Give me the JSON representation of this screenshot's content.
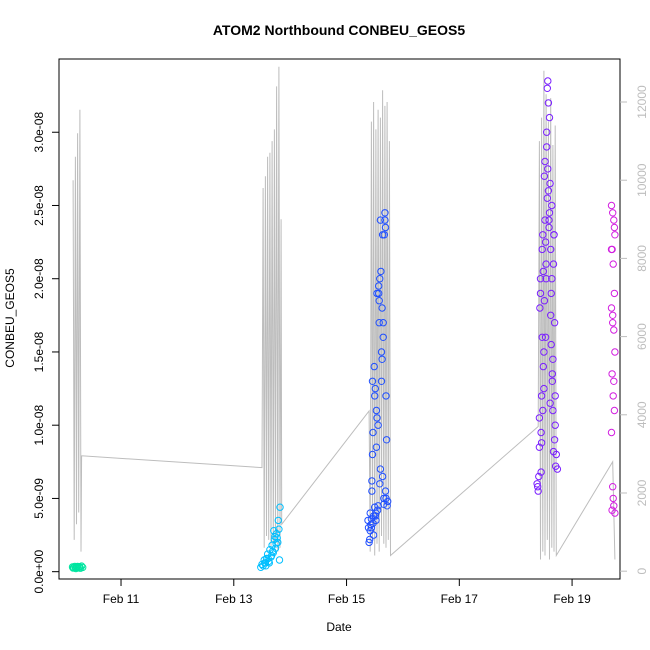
{
  "chart_data": {
    "type": "scatter",
    "title": "ATOM2 Northbound CONBEU_GEOS5",
    "xlabel": "Date",
    "ylabel": "CONBEU_GEOS5",
    "x_unit": "day of February",
    "xlim": [
      9.9,
      19.85
    ],
    "ylim": [
      -5e-10,
      3.5e-08
    ],
    "x_ticks": [
      11,
      13,
      15,
      17,
      19
    ],
    "x_tick_labels": [
      "Feb 11",
      "Feb 13",
      "Feb 15",
      "Feb 17",
      "Feb 19"
    ],
    "y_ticks": [
      0,
      5e-09,
      1e-08,
      1.5e-08,
      2e-08,
      2.5e-08,
      3e-08
    ],
    "y_tick_labels": [
      "0.0e+00",
      "5.0e-09",
      "1.0e-08",
      "1.5e-08",
      "2.0e-08",
      "2.5e-08",
      "3.0e-08"
    ],
    "y2_ticks": [
      0,
      2000,
      4000,
      6000,
      8000,
      10000,
      12000
    ],
    "y2_tick_labels": [
      "0",
      "2000",
      "4000",
      "6000",
      "8000",
      "10000",
      "12000"
    ],
    "y2lim": [
      -200,
      13100
    ],
    "grid": false,
    "altitude_series": {
      "color": "#bdbdbd",
      "x": [
        10.15,
        10.17,
        10.19,
        10.21,
        10.23,
        10.25,
        10.27,
        10.29,
        10.3,
        13.5,
        13.52,
        13.54,
        13.56,
        13.58,
        13.6,
        13.62,
        13.64,
        13.66,
        13.68,
        13.7,
        13.72,
        13.74,
        13.76,
        13.78,
        13.8,
        13.82,
        13.84,
        13.85,
        15.4,
        15.42,
        15.44,
        15.46,
        15.48,
        15.5,
        15.52,
        15.54,
        15.56,
        15.58,
        15.6,
        15.62,
        15.64,
        15.66,
        15.68,
        15.7,
        15.72,
        15.74,
        15.76,
        15.78,
        18.4,
        18.42,
        18.44,
        18.46,
        18.48,
        18.5,
        18.52,
        18.54,
        18.56,
        18.58,
        18.6,
        18.62,
        18.64,
        18.66,
        18.68,
        18.7,
        18.72,
        19.72,
        19.76
      ],
      "y": [
        10000,
        800,
        10600,
        1200,
        11200,
        1500,
        11800,
        500,
        2950,
        2650,
        9800,
        600,
        10100,
        900,
        10600,
        800,
        10700,
        600,
        11000,
        700,
        11300,
        600,
        12400,
        500,
        12900,
        600,
        9000,
        1200,
        4100,
        500,
        11500,
        800,
        12000,
        400,
        11300,
        700,
        11800,
        500,
        11600,
        900,
        12300,
        700,
        11900,
        600,
        12000,
        800,
        11000,
        400,
        3700,
        11000,
        300,
        11600,
        500,
        12800,
        400,
        12200,
        800,
        11500,
        300,
        12100,
        600,
        10900,
        500,
        11400,
        400,
        2800,
        300
      ]
    },
    "series": [
      {
        "color": "#00e5a0",
        "x": [
          10.14,
          10.16,
          10.18,
          10.2,
          10.22,
          10.24,
          10.26,
          10.28,
          10.3,
          10.32,
          10.15,
          10.21,
          10.27,
          10.19,
          10.23
        ],
        "y": [
          3.2e-10,
          2.8e-10,
          3.6e-10,
          2.2e-10,
          3e-10,
          2.6e-10,
          3.4e-10,
          2.4e-10,
          3.8e-10,
          2.9e-10,
          2.5e-10,
          3.3e-10,
          3.1e-10,
          2.7e-10,
          3.5e-10
        ]
      },
      {
        "color": "#00bfff",
        "x": [
          13.48,
          13.5,
          13.52,
          13.54,
          13.56,
          13.58,
          13.6,
          13.62,
          13.64,
          13.66,
          13.68,
          13.7,
          13.72,
          13.74,
          13.76,
          13.78,
          13.8,
          13.82,
          13.55,
          13.61,
          13.67,
          13.73,
          13.79,
          13.71,
          13.75,
          13.63,
          13.69,
          13.77,
          13.81,
          13.57
        ],
        "y": [
          3e-10,
          5e-10,
          4e-10,
          8e-10,
          6e-10,
          9e-10,
          1.2e-09,
          7e-10,
          1.5e-09,
          1e-09,
          1.8e-09,
          1.3e-09,
          2.2e-09,
          1.6e-09,
          2.6e-09,
          2e-09,
          2.9e-09,
          4.4e-09,
          6e-10,
          9e-10,
          1.1e-09,
          2.4e-09,
          3.5e-09,
          2.8e-09,
          1.9e-09,
          6e-10,
          1.4e-09,
          2.3e-09,
          8e-10,
          4e-10
        ]
      },
      {
        "color": "#1f4fff",
        "x": [
          15.38,
          15.4,
          15.42,
          15.44,
          15.46,
          15.48,
          15.5,
          15.52,
          15.54,
          15.56,
          15.58,
          15.6,
          15.62,
          15.64,
          15.66,
          15.68,
          15.7,
          15.72,
          15.41,
          15.43,
          15.45,
          15.47,
          15.49,
          15.51,
          15.53,
          15.55,
          15.57,
          15.59,
          15.61,
          15.63,
          15.65,
          15.67,
          15.69,
          15.71,
          15.73,
          15.39,
          15.44,
          15.5,
          15.56,
          15.62,
          15.68,
          15.46,
          15.52,
          15.58,
          15.64,
          15.7,
          15.48,
          15.54,
          15.6,
          15.66,
          15.42,
          15.57,
          15.63,
          15.69,
          15.51,
          15.45,
          15.59,
          15.65,
          15.53,
          15.47
        ],
        "y": [
          3.5e-09,
          2e-09,
          4e-09,
          3e-09,
          1.3e-08,
          2.5e-09,
          1.2e-08,
          3.5e-09,
          1.9e-08,
          4.5e-09,
          1.7e-08,
          2.4e-08,
          1.5e-08,
          2.3e-08,
          5e-09,
          2.45e-08,
          1.2e-08,
          4.5e-09,
          2.2e-09,
          3.2e-09,
          5.5e-09,
          9.5e-09,
          1.4e-08,
          3.8e-09,
          1.1e-08,
          4.2e-09,
          1.95e-08,
          6e-09,
          2.05e-08,
          1.8e-08,
          1.6e-08,
          2.3e-08,
          5.5e-09,
          9e-09,
          4.8e-09,
          3e-09,
          3.6e-09,
          4.4e-09,
          1e-08,
          1.3e-08,
          2.4e-08,
          8e-09,
          4e-09,
          1.85e-08,
          6.5e-09,
          5e-09,
          3.8e-09,
          1.05e-08,
          7e-09,
          4.6e-09,
          2.8e-09,
          1.9e-08,
          1.45e-08,
          2.35e-08,
          1.25e-08,
          6.2e-09,
          2e-08,
          1.7e-08,
          8.5e-09,
          3.3e-09
        ]
      },
      {
        "color": "#7a1fff",
        "x": [
          18.38,
          18.4,
          18.42,
          18.44,
          18.46,
          18.48,
          18.5,
          18.52,
          18.54,
          18.56,
          18.58,
          18.6,
          18.62,
          18.64,
          18.66,
          18.68,
          18.7,
          18.72,
          18.74,
          18.41,
          18.43,
          18.45,
          18.47,
          18.49,
          18.51,
          18.53,
          18.55,
          18.57,
          18.59,
          18.61,
          18.63,
          18.65,
          18.67,
          18.69,
          18.71,
          18.39,
          18.44,
          18.5,
          18.56,
          18.62,
          18.68,
          18.46,
          18.52,
          18.58,
          18.64,
          18.7,
          18.48,
          18.54,
          18.6,
          18.66,
          18.42,
          18.57,
          18.63,
          18.69,
          18.51,
          18.45,
          18.59,
          18.65,
          18.53,
          18.47,
          18.55,
          18.61,
          18.67,
          18.49
        ],
        "y": [
          6e-09,
          5.5e-09,
          8.5e-09,
          1.9e-08,
          1.2e-08,
          2.3e-08,
          1.5e-08,
          2.8e-08,
          2e-08,
          3.3e-08,
          2.6e-08,
          3.1e-08,
          2.2e-08,
          2.5e-08,
          1.1e-08,
          2.3e-08,
          1e-08,
          8e-09,
          7e-09,
          6.5e-09,
          1.8e-08,
          9.5e-09,
          2.2e-08,
          1.4e-08,
          2.7e-08,
          1.6e-08,
          2.9e-08,
          3.35e-08,
          2.4e-08,
          2.65e-08,
          1.9e-08,
          1.3e-08,
          2.1e-08,
          1.7e-08,
          7.2e-09,
          5.8e-09,
          2e-08,
          1.25e-08,
          2.55e-08,
          1.75e-08,
          2.3e-08,
          8.8e-09,
          2.4e-08,
          3.2e-08,
          2e-08,
          1.2e-08,
          1.1e-08,
          2.1e-08,
          2.45e-08,
          1.45e-08,
          1.05e-08,
          2.75e-08,
          1.55e-08,
          9e-09,
          1.85e-08,
          6.8e-09,
          2.35e-08,
          1.35e-08,
          2.25e-08,
          1.6e-08,
          3e-08,
          1.15e-08,
          8.2e-09,
          2.05e-08
        ]
      },
      {
        "color": "#d21fe0",
        "x": [
          19.7,
          19.72,
          19.74,
          19.76,
          19.71,
          19.73,
          19.75,
          19.7,
          19.72,
          19.74,
          19.76,
          19.71,
          19.73,
          19.75,
          19.7,
          19.72,
          19.74,
          19.76,
          19.71,
          19.73,
          19.75,
          19.7,
          19.72,
          19.74
        ],
        "y": [
          2.5e-08,
          2.45e-08,
          2.4e-08,
          2.3e-08,
          2.2e-08,
          2.1e-08,
          1.9e-08,
          1.8e-08,
          1.75e-08,
          1.65e-08,
          1.5e-08,
          1.35e-08,
          1.2e-08,
          1.1e-08,
          9.5e-09,
          5.8e-09,
          4.5e-09,
          4e-09,
          4.2e-09,
          5e-09,
          2.35e-08,
          2.2e-08,
          1.7e-08,
          1.3e-08
        ]
      }
    ]
  }
}
